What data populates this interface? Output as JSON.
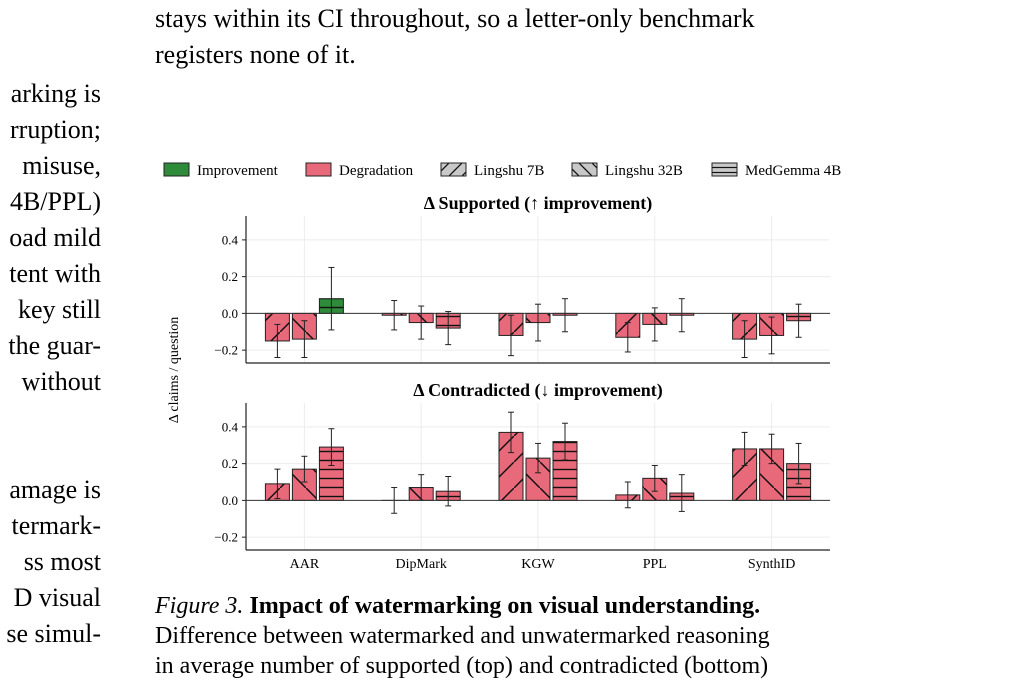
{
  "top_text": [
    "stays within its CI throughout, so a letter-only benchmark",
    "registers none of it."
  ],
  "left_column_text": {
    "block1": [
      "arking is",
      "rruption;",
      "misuse,",
      "4B/PPL)",
      "oad mild",
      "tent with",
      "key still",
      "the guar-",
      "without"
    ],
    "block2": [
      "amage is",
      "termark-",
      "ss most",
      "D visual",
      "se simul-"
    ]
  },
  "caption": {
    "label": "Figure 3.",
    "title": "Impact of watermarking on visual understanding.",
    "lines": [
      "Difference between watermarked and unwatermarked reasoning",
      "in average number of supported (top) and contradicted (bottom)"
    ]
  },
  "colors": {
    "improvement": "#2e8b3a",
    "degradation": "#e8697a"
  },
  "chart_data": {
    "type": "bar",
    "legend": {
      "placement": "top",
      "entries": [
        {
          "label": "Improvement",
          "kind": "color",
          "color": "#2e8b3a"
        },
        {
          "label": "Degradation",
          "kind": "color",
          "color": "#e8697a"
        },
        {
          "label": "Lingshu 7B",
          "kind": "hatch",
          "pattern": "diag-up"
        },
        {
          "label": "Lingshu 32B",
          "kind": "hatch",
          "pattern": "diag-down"
        },
        {
          "label": "MedGemma 4B",
          "kind": "hatch",
          "pattern": "horiz"
        }
      ]
    },
    "ylabel": "Δ claims / question",
    "categories": [
      "AAR",
      "DipMark",
      "KGW",
      "PPL",
      "SynthID"
    ],
    "series_names": [
      "Lingshu 7B",
      "Lingshu 32B",
      "MedGemma 4B"
    ],
    "grid": true,
    "panels": [
      {
        "title": "Δ Supported  (↑ improvement)",
        "ylim": [
          -0.27,
          0.53
        ],
        "yticks": [
          -0.2,
          0.0,
          0.2,
          0.4
        ],
        "yticklabels": [
          "−0.2",
          "0.0",
          "0.2",
          "0.4"
        ],
        "improvement": "up",
        "values": [
          [
            -0.15,
            -0.01,
            -0.12,
            -0.13,
            -0.14
          ],
          [
            -0.14,
            -0.05,
            -0.05,
            -0.06,
            -0.12
          ],
          [
            0.08,
            -0.08,
            -0.01,
            -0.01,
            -0.04
          ]
        ],
        "errors": [
          [
            0.09,
            0.08,
            0.11,
            0.08,
            0.1
          ],
          [
            0.1,
            0.09,
            0.1,
            0.09,
            0.1
          ],
          [
            0.17,
            0.09,
            0.09,
            0.09,
            0.09
          ]
        ]
      },
      {
        "title": "Δ Contradicted  (↓ improvement)",
        "ylim": [
          -0.27,
          0.53
        ],
        "yticks": [
          -0.2,
          0.0,
          0.2,
          0.4
        ],
        "yticklabels": [
          "−0.2",
          "0.0",
          "0.2",
          "0.4"
        ],
        "improvement": "down",
        "values": [
          [
            0.09,
            0.0,
            0.37,
            0.03,
            0.28
          ],
          [
            0.17,
            0.07,
            0.23,
            0.12,
            0.28
          ],
          [
            0.29,
            0.05,
            0.32,
            0.04,
            0.2
          ]
        ],
        "errors": [
          [
            0.08,
            0.07,
            0.11,
            0.07,
            0.09
          ],
          [
            0.07,
            0.07,
            0.08,
            0.07,
            0.08
          ],
          [
            0.1,
            0.08,
            0.1,
            0.1,
            0.11
          ]
        ]
      }
    ]
  }
}
